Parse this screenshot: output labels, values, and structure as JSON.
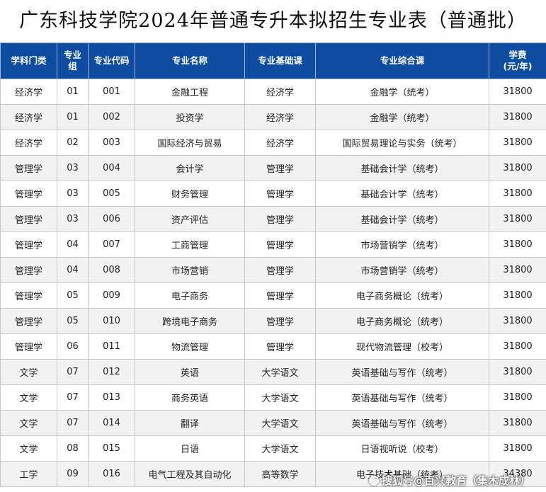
{
  "title": "广东科技学院2024年普通专升本拟招生专业表（普通批）",
  "headers": [
    "学科门类",
    "专业组",
    "专业代码",
    "专业名称",
    "专业基础课",
    "专业综合课",
    "学费（元/年）"
  ],
  "header_lines": [
    [
      "学科门类"
    ],
    [
      "专业",
      "组"
    ],
    [
      "专业代码"
    ],
    [
      "专业名称"
    ],
    [
      "专业基础课"
    ],
    [
      "专业综合课"
    ],
    [
      "学费",
      "(元/年)"
    ]
  ],
  "rows": [
    [
      "经济学",
      "01",
      "001",
      "金融工程",
      "经济学",
      "金融学（统考）",
      "31800"
    ],
    [
      "经济学",
      "01",
      "002",
      "投资学",
      "经济学",
      "金融学（统考）",
      "31800"
    ],
    [
      "经济学",
      "02",
      "003",
      "国际经济与贸易",
      "经济学",
      "国际贸易理论与实务（统考）",
      "31800"
    ],
    [
      "管理学",
      "03",
      "004",
      "会计学",
      "管理学",
      "基础会计学（统考）",
      "31800"
    ],
    [
      "管理学",
      "03",
      "005",
      "财务管理",
      "管理学",
      "基础会计学（统考）",
      "31800"
    ],
    [
      "管理学",
      "03",
      "006",
      "资产评估",
      "管理学",
      "基础会计学（统考）",
      "31800"
    ],
    [
      "管理学",
      "04",
      "007",
      "工商管理",
      "管理学",
      "市场营销学（统考）",
      "31800"
    ],
    [
      "管理学",
      "04",
      "008",
      "市场营销",
      "管理学",
      "市场营销学（统考）",
      "31800"
    ],
    [
      "管理学",
      "05",
      "009",
      "电子商务",
      "管理学",
      "电子商务概论（统考）",
      "31800"
    ],
    [
      "管理学",
      "05",
      "010",
      "跨境电子商务",
      "管理学",
      "电子商务概论（统考）",
      "31800"
    ],
    [
      "管理学",
      "06",
      "011",
      "物流管理",
      "管理学",
      "现代物流管理（校考）",
      "31800"
    ],
    [
      "文学",
      "07",
      "012",
      "英语",
      "大学语文",
      "英语基础与写作（统考）",
      "31800"
    ],
    [
      "文学",
      "07",
      "013",
      "商务英语",
      "大学语文",
      "英语基础与写作（统考）",
      "31800"
    ],
    [
      "文学",
      "07",
      "014",
      "翻译",
      "大学语文",
      "英语基础与写作（统考）",
      "31800"
    ],
    [
      "文学",
      "08",
      "015",
      "日语",
      "大学语文",
      "日语视听说（校考）",
      "31800"
    ],
    [
      "工学",
      "09",
      "016",
      "电气工程及其自动化",
      "高等数学",
      "电子技术基础（统考）",
      "34380"
    ]
  ],
  "watermark": "搜狐号@百兴教育（集木成林）",
  "colors": {
    "header_bg": "#0c4da2",
    "header_text": "#ffffff",
    "stripe": "#f2f2f2"
  }
}
